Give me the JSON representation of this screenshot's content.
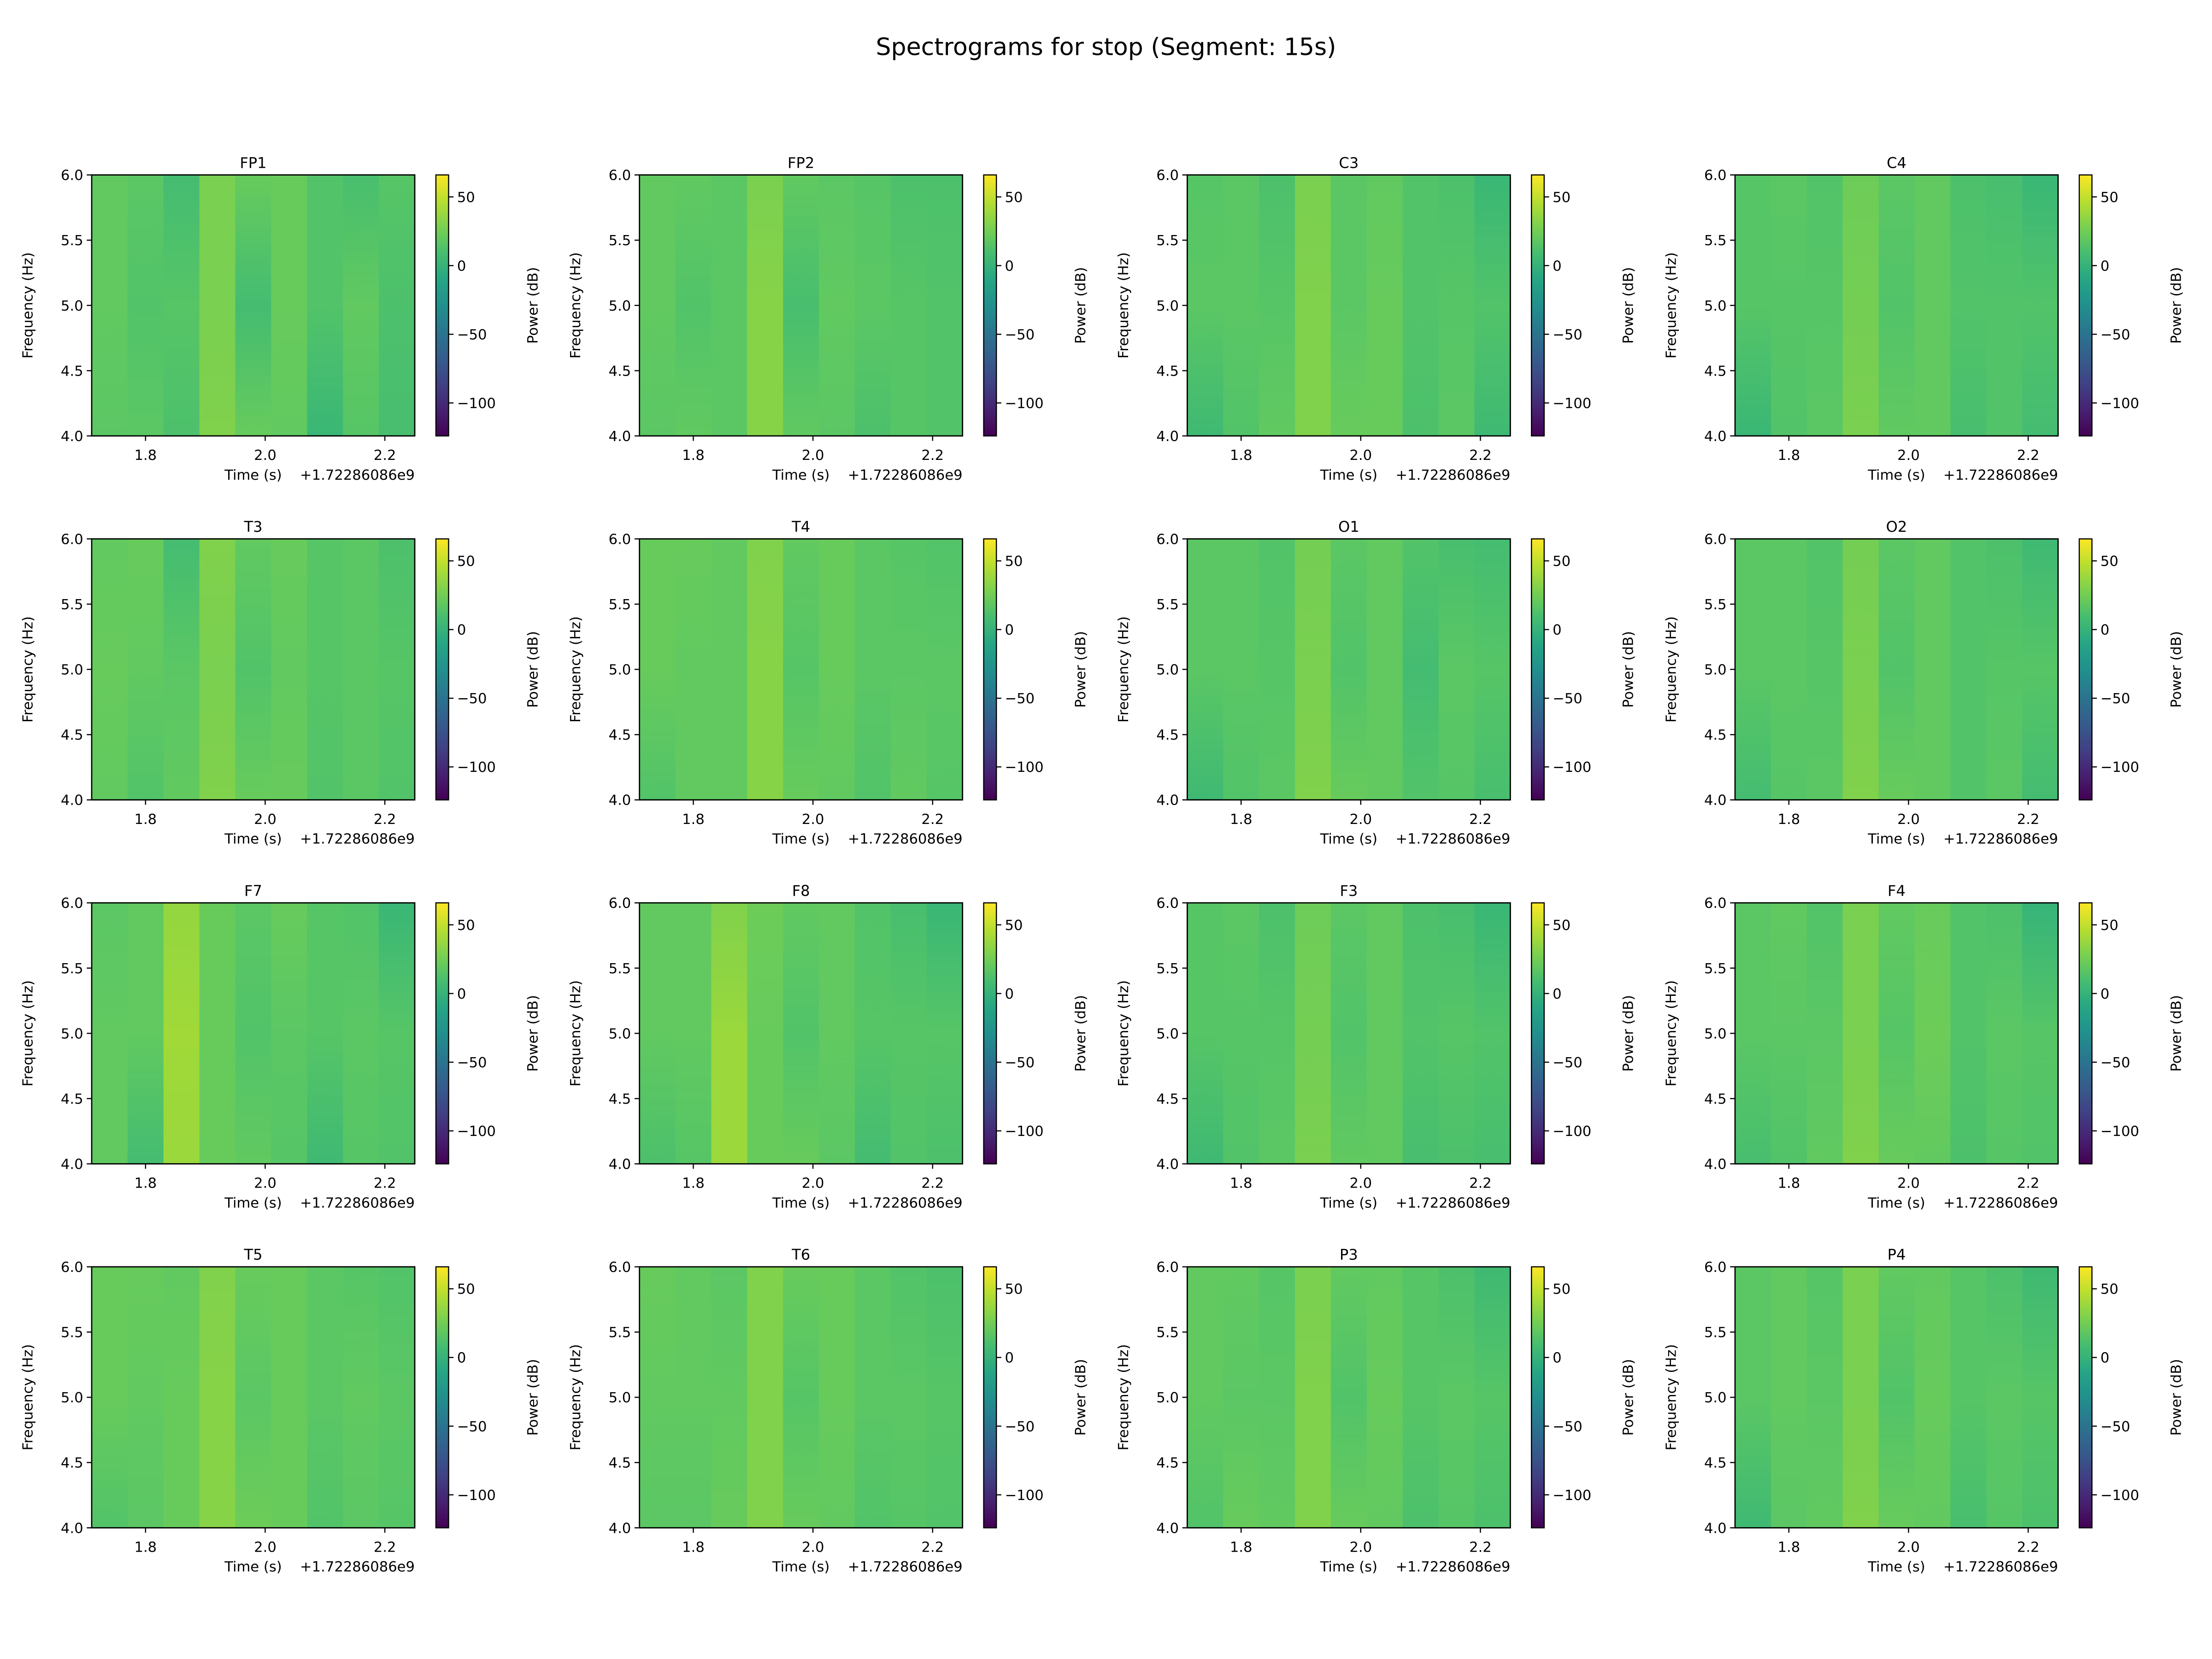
{
  "chart_data": {
    "type": "heatmap",
    "title": "Spectrograms for stop (Segment: 15s)",
    "xlabel": "Time (s)",
    "x_offset_text": "+1.72286086e9",
    "ylabel": "Frequency (Hz)",
    "colorbar_label": "Power (dB)",
    "colormap": "viridis",
    "xlim": [
      1.71,
      2.25
    ],
    "ylim": [
      4.0,
      6.0
    ],
    "xticks": [
      "1.8",
      "2.0",
      "2.2"
    ],
    "xtick_values": [
      1.8,
      2.0,
      2.2
    ],
    "yticks": [
      "4.0",
      "4.5",
      "5.0",
      "5.5",
      "6.0"
    ],
    "ytick_values": [
      4.0,
      4.5,
      5.0,
      5.5,
      6.0
    ],
    "cbar_ticks": [
      "50",
      "0",
      "−50",
      "−100"
    ],
    "cbar_tick_values": [
      50,
      0,
      -50,
      -100
    ],
    "clim": [
      -124,
      66
    ],
    "time_bin_edges": [
      1.71,
      1.77,
      1.83,
      1.89,
      1.95,
      2.01,
      2.07,
      2.13,
      2.19,
      2.25
    ],
    "freqs": [
      4.0,
      5.0,
      6.0
    ],
    "panels": [
      {
        "name": "FP1",
        "power_db": [
          [
            18,
            18,
            12,
            30,
            22,
            20,
            4,
            16,
            10
          ],
          [
            20,
            14,
            16,
            28,
            8,
            22,
            14,
            20,
            12
          ],
          [
            20,
            18,
            8,
            28,
            22,
            22,
            14,
            10,
            16
          ]
        ]
      },
      {
        "name": "FP2",
        "power_db": [
          [
            18,
            20,
            18,
            32,
            20,
            18,
            12,
            16,
            14
          ],
          [
            20,
            14,
            18,
            32,
            10,
            20,
            18,
            16,
            14
          ],
          [
            20,
            20,
            18,
            28,
            20,
            18,
            16,
            12,
            12
          ]
        ]
      },
      {
        "name": "C3",
        "power_db": [
          [
            6,
            14,
            20,
            30,
            22,
            22,
            12,
            18,
            6
          ],
          [
            18,
            18,
            16,
            30,
            18,
            22,
            14,
            16,
            14
          ],
          [
            16,
            18,
            12,
            28,
            18,
            20,
            14,
            12,
            4
          ]
        ]
      },
      {
        "name": "C4",
        "power_db": [
          [
            4,
            14,
            18,
            28,
            20,
            20,
            10,
            14,
            8
          ],
          [
            16,
            16,
            16,
            26,
            14,
            20,
            14,
            14,
            14
          ],
          [
            16,
            18,
            14,
            24,
            18,
            20,
            12,
            10,
            4
          ]
        ]
      },
      {
        "name": "T3",
        "power_db": [
          [
            20,
            14,
            20,
            30,
            22,
            22,
            14,
            18,
            14
          ],
          [
            22,
            20,
            18,
            28,
            14,
            20,
            16,
            18,
            16
          ],
          [
            20,
            22,
            8,
            30,
            20,
            22,
            16,
            18,
            12
          ]
        ]
      },
      {
        "name": "T4",
        "power_db": [
          [
            14,
            20,
            20,
            32,
            22,
            20,
            14,
            20,
            16
          ],
          [
            22,
            20,
            20,
            32,
            16,
            22,
            18,
            18,
            18
          ],
          [
            22,
            22,
            20,
            30,
            20,
            22,
            18,
            16,
            14
          ]
        ]
      },
      {
        "name": "O1",
        "power_db": [
          [
            6,
            14,
            18,
            30,
            22,
            20,
            14,
            16,
            10
          ],
          [
            18,
            18,
            16,
            28,
            14,
            20,
            8,
            18,
            16
          ],
          [
            18,
            18,
            14,
            26,
            18,
            20,
            14,
            10,
            8
          ]
        ]
      },
      {
        "name": "O2",
        "power_db": [
          [
            8,
            16,
            18,
            30,
            22,
            20,
            14,
            18,
            8
          ],
          [
            18,
            18,
            16,
            28,
            14,
            20,
            14,
            16,
            16
          ],
          [
            18,
            18,
            14,
            26,
            18,
            20,
            14,
            12,
            6
          ]
        ]
      },
      {
        "name": "F7",
        "power_db": [
          [
            20,
            8,
            38,
            22,
            20,
            16,
            6,
            16,
            14
          ],
          [
            20,
            20,
            40,
            22,
            14,
            18,
            16,
            18,
            16
          ],
          [
            18,
            20,
            36,
            22,
            18,
            22,
            16,
            14,
            4
          ]
        ]
      },
      {
        "name": "F8",
        "power_db": [
          [
            12,
            16,
            38,
            22,
            22,
            18,
            8,
            14,
            12
          ],
          [
            20,
            20,
            38,
            22,
            14,
            20,
            16,
            16,
            16
          ],
          [
            20,
            20,
            30,
            24,
            20,
            20,
            14,
            10,
            4
          ]
        ]
      },
      {
        "name": "F3",
        "power_db": [
          [
            6,
            14,
            18,
            28,
            20,
            20,
            10,
            12,
            10
          ],
          [
            16,
            16,
            16,
            26,
            14,
            20,
            14,
            16,
            14
          ],
          [
            16,
            18,
            12,
            24,
            18,
            20,
            12,
            10,
            4
          ]
        ]
      },
      {
        "name": "F4",
        "power_db": [
          [
            10,
            14,
            20,
            30,
            22,
            20,
            12,
            16,
            14
          ],
          [
            18,
            18,
            18,
            28,
            16,
            24,
            14,
            18,
            16
          ],
          [
            18,
            20,
            14,
            28,
            20,
            22,
            14,
            12,
            2
          ]
        ]
      },
      {
        "name": "T5",
        "power_db": [
          [
            14,
            18,
            22,
            32,
            24,
            22,
            14,
            18,
            16
          ],
          [
            22,
            20,
            22,
            32,
            18,
            22,
            18,
            20,
            18
          ],
          [
            22,
            22,
            20,
            30,
            22,
            22,
            18,
            16,
            14
          ]
        ]
      },
      {
        "name": "T6",
        "power_db": [
          [
            18,
            18,
            22,
            30,
            22,
            20,
            14,
            16,
            14
          ],
          [
            20,
            20,
            20,
            30,
            16,
            22,
            18,
            18,
            16
          ],
          [
            22,
            20,
            18,
            30,
            22,
            22,
            18,
            14,
            12
          ]
        ]
      },
      {
        "name": "P3",
        "power_db": [
          [
            14,
            22,
            20,
            30,
            22,
            20,
            12,
            16,
            12
          ],
          [
            20,
            18,
            18,
            30,
            14,
            22,
            16,
            18,
            16
          ],
          [
            20,
            20,
            16,
            28,
            20,
            20,
            16,
            12,
            6
          ]
        ]
      },
      {
        "name": "P4",
        "power_db": [
          [
            6,
            18,
            20,
            30,
            22,
            20,
            10,
            16,
            12
          ],
          [
            18,
            20,
            18,
            28,
            14,
            22,
            16,
            18,
            16
          ],
          [
            18,
            20,
            16,
            28,
            20,
            20,
            16,
            12,
            6
          ]
        ]
      }
    ]
  }
}
